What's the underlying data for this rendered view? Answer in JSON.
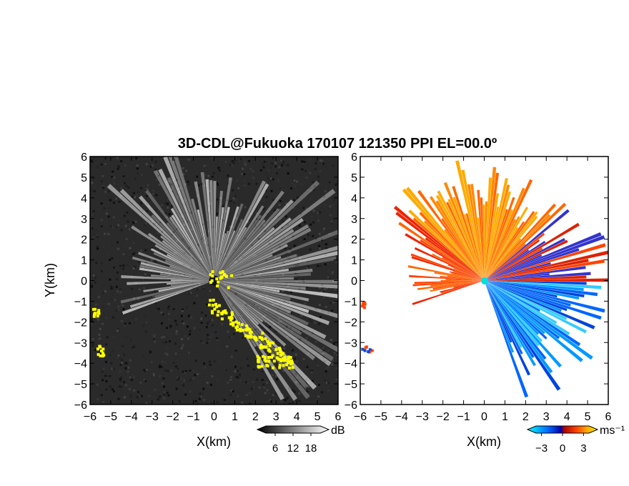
{
  "chart_data": [
    {
      "type": "heatmap",
      "panel": "left",
      "title": "3D-CDL@Fukuoka 170107 121350 PPI EL=00.0º",
      "xlabel": "X(km)",
      "ylabel": "Y(km)",
      "xlim": [
        -6,
        6
      ],
      "ylim": [
        -6,
        6
      ],
      "xticks": [
        "−6",
        "−5",
        "−4",
        "−3",
        "−2",
        "−1",
        "0",
        "1",
        "2",
        "3",
        "4",
        "5",
        "6"
      ],
      "yticks": [
        "6",
        "5",
        "4",
        "3",
        "2",
        "1",
        "0",
        "−1",
        "−2",
        "−3",
        "−4",
        "−5",
        "−6"
      ],
      "colorbar": {
        "unit": "dB",
        "ticks": [
          "6",
          "12",
          "18"
        ],
        "range": [
          0,
          24
        ],
        "colors": [
          "#000000",
          "#ffffff"
        ]
      },
      "highlight_color": "#ffff00",
      "background": "#2a2a2a"
    },
    {
      "type": "heatmap",
      "panel": "right",
      "xlabel": "X(km)",
      "xlim": [
        -6,
        6
      ],
      "ylim": [
        -6,
        6
      ],
      "xticks": [
        "−6",
        "−5",
        "−4",
        "−3",
        "−2",
        "−1",
        "0",
        "1",
        "2",
        "3",
        "4",
        "5",
        "6"
      ],
      "yticks": [
        "6",
        "5",
        "4",
        "3",
        "2",
        "1",
        "0",
        "−1",
        "−2",
        "−3",
        "−4",
        "−5",
        "−6"
      ],
      "colorbar": {
        "unit": "ms⁻¹",
        "ticks": [
          "−3",
          "0",
          "3"
        ],
        "range": [
          -5,
          5
        ],
        "colors": [
          "#00ffff",
          "#0066ff",
          "#0000aa",
          "#aa0000",
          "#ff4400",
          "#ffaa00",
          "#ffee00"
        ]
      },
      "background": "#ffffff"
    }
  ]
}
